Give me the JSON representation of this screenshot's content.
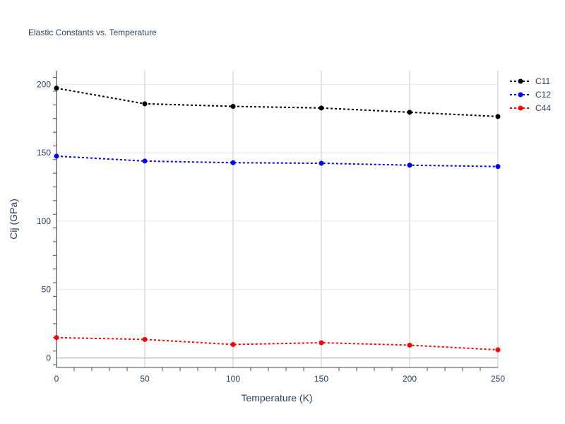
{
  "chart_data": {
    "type": "line",
    "title": "Elastic Constants vs. Temperature",
    "xlabel": "Temperature (K)",
    "ylabel": "Cij (GPa)",
    "xlim": [
      0,
      250
    ],
    "ylim": [
      -7,
      210
    ],
    "x_ticks": [
      0,
      50,
      100,
      150,
      200,
      250
    ],
    "y_ticks": [
      0,
      50,
      100,
      150,
      200
    ],
    "grid": true,
    "legend_position": "top-right",
    "x": [
      0,
      50,
      100,
      150,
      200,
      250
    ],
    "series": [
      {
        "name": "C11",
        "color": "#000000",
        "values": [
          197.2,
          185.8,
          183.9,
          182.7,
          179.6,
          176.5
        ]
      },
      {
        "name": "C12",
        "color": "#0000ff",
        "values": [
          147.5,
          143.9,
          142.7,
          142.3,
          140.9,
          139.9
        ]
      },
      {
        "name": "C44",
        "color": "#ff0000",
        "values": [
          14.8,
          13.5,
          9.8,
          11.1,
          9.3,
          5.9
        ]
      }
    ]
  }
}
